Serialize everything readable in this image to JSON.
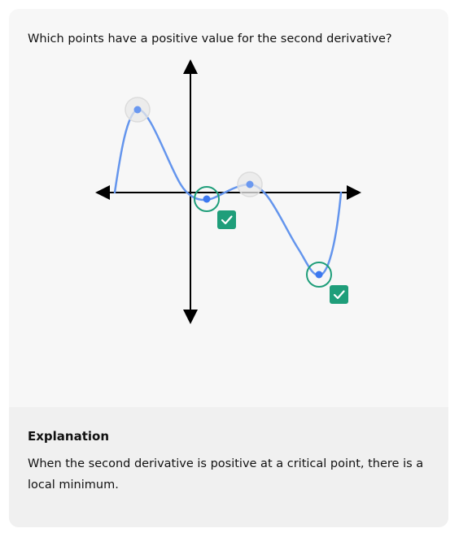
{
  "question": {
    "text": "Which points have a positive value for the second derivative?"
  },
  "graph": {
    "points": [
      {
        "id": "local-max-left",
        "selected": false,
        "correct": false
      },
      {
        "id": "local-min-near-origin",
        "selected": true,
        "correct": true
      },
      {
        "id": "local-max-right",
        "selected": false,
        "correct": false
      },
      {
        "id": "local-min-right",
        "selected": true,
        "correct": true
      }
    ],
    "colors": {
      "curve": "#6495ed",
      "point": "#3c78f0",
      "axes": "#000000",
      "selected_ring": "#1f9e7a",
      "unselected_ring": "#e6e6e6",
      "check_badge": "#1f9e7a"
    },
    "check_icon": "checkmark-icon"
  },
  "explanation": {
    "title": "Explanation",
    "body": "When the second derivative is positive at a critical point, there is a local minimum."
  }
}
